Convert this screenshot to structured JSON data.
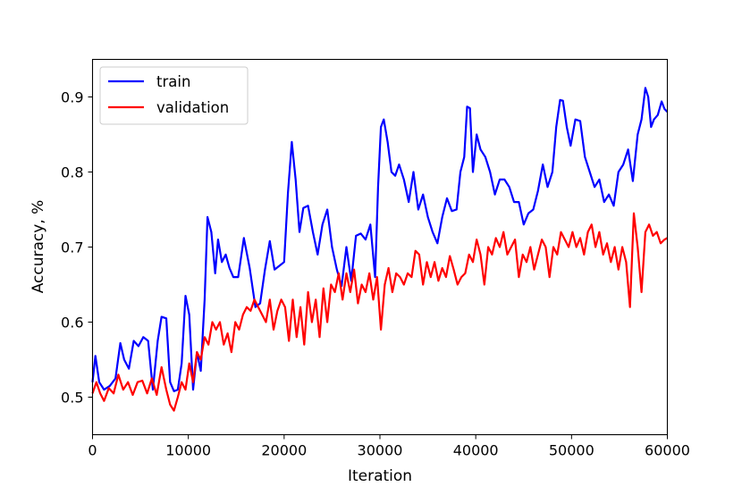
{
  "chart_data": {
    "type": "line",
    "xlabel": "Iteration",
    "ylabel": "Accuracy, %",
    "xlim": [
      0,
      60000
    ],
    "ylim": [
      0.45,
      0.95
    ],
    "xticks": [
      "0",
      "10000",
      "20000",
      "30000",
      "40000",
      "50000",
      "60000"
    ],
    "yticks": [
      "0.5",
      "0.6",
      "0.7",
      "0.8",
      "0.9"
    ],
    "grid": false,
    "legend_position": "top-left",
    "series": [
      {
        "name": "train",
        "color": "#0000ff",
        "x": [
          0,
          300,
          700,
          1200,
          1800,
          2400,
          2900,
          3300,
          3800,
          4300,
          4800,
          5300,
          5800,
          6300,
          6800,
          7200,
          7700,
          8100,
          8500,
          8900,
          9300,
          9700,
          10100,
          10500,
          10900,
          11300,
          11700,
          12000,
          12400,
          12800,
          13100,
          13500,
          13900,
          14300,
          14700,
          15200,
          15800,
          16400,
          17000,
          17500,
          18000,
          18500,
          19000,
          19500,
          20000,
          20400,
          20800,
          21200,
          21600,
          22000,
          22500,
          23000,
          23500,
          24000,
          24500,
          25000,
          25500,
          26000,
          26500,
          27000,
          27500,
          28000,
          28500,
          29000,
          29500,
          29800,
          30100,
          30400,
          30800,
          31200,
          31600,
          32000,
          32500,
          33000,
          33500,
          34000,
          34500,
          35000,
          35500,
          36000,
          36500,
          37000,
          37500,
          38000,
          38400,
          38800,
          39100,
          39400,
          39700,
          40100,
          40500,
          41000,
          41500,
          42000,
          42500,
          43000,
          43500,
          44000,
          44500,
          45000,
          45500,
          46000,
          46500,
          47000,
          47500,
          48000,
          48400,
          48800,
          49100,
          49500,
          49900,
          50400,
          50900,
          51400,
          51900,
          52400,
          52900,
          53400,
          53900,
          54400,
          54900,
          55400,
          55900,
          56400,
          56900,
          57300,
          57700,
          58000,
          58300,
          58600,
          59000,
          59400,
          59700,
          60000
        ],
        "y": [
          0.52,
          0.555,
          0.52,
          0.51,
          0.515,
          0.525,
          0.572,
          0.55,
          0.538,
          0.575,
          0.568,
          0.58,
          0.575,
          0.51,
          0.575,
          0.607,
          0.605,
          0.52,
          0.508,
          0.51,
          0.545,
          0.635,
          0.61,
          0.51,
          0.56,
          0.535,
          0.63,
          0.74,
          0.72,
          0.665,
          0.71,
          0.68,
          0.69,
          0.672,
          0.66,
          0.66,
          0.712,
          0.672,
          0.62,
          0.625,
          0.67,
          0.708,
          0.67,
          0.675,
          0.68,
          0.772,
          0.84,
          0.79,
          0.72,
          0.752,
          0.755,
          0.72,
          0.69,
          0.73,
          0.75,
          0.7,
          0.67,
          0.648,
          0.7,
          0.655,
          0.715,
          0.718,
          0.71,
          0.73,
          0.66,
          0.78,
          0.86,
          0.87,
          0.84,
          0.8,
          0.795,
          0.81,
          0.79,
          0.76,
          0.8,
          0.75,
          0.77,
          0.74,
          0.72,
          0.705,
          0.74,
          0.765,
          0.748,
          0.75,
          0.8,
          0.82,
          0.887,
          0.885,
          0.8,
          0.85,
          0.83,
          0.82,
          0.8,
          0.77,
          0.79,
          0.79,
          0.78,
          0.76,
          0.76,
          0.73,
          0.745,
          0.75,
          0.775,
          0.81,
          0.78,
          0.8,
          0.86,
          0.896,
          0.895,
          0.86,
          0.835,
          0.87,
          0.868,
          0.82,
          0.8,
          0.78,
          0.79,
          0.76,
          0.77,
          0.755,
          0.8,
          0.81,
          0.83,
          0.788,
          0.85,
          0.87,
          0.912,
          0.9,
          0.86,
          0.87,
          0.876,
          0.894,
          0.884,
          0.88
        ]
      },
      {
        "name": "validation",
        "color": "#ff0000",
        "x": [
          0,
          400,
          800,
          1200,
          1700,
          2200,
          2700,
          3200,
          3700,
          4200,
          4700,
          5200,
          5700,
          6200,
          6700,
          7200,
          7700,
          8100,
          8500,
          8900,
          9300,
          9700,
          10100,
          10500,
          10900,
          11300,
          11700,
          12100,
          12500,
          12900,
          13300,
          13700,
          14100,
          14500,
          14900,
          15300,
          15700,
          16100,
          16500,
          16900,
          17300,
          17700,
          18100,
          18500,
          18900,
          19300,
          19700,
          20100,
          20500,
          20900,
          21300,
          21700,
          22100,
          22500,
          22900,
          23300,
          23700,
          24100,
          24500,
          24900,
          25300,
          25700,
          26100,
          26500,
          26900,
          27300,
          27700,
          28100,
          28500,
          28900,
          29300,
          29700,
          30100,
          30500,
          30900,
          31300,
          31700,
          32100,
          32500,
          32900,
          33300,
          33700,
          34100,
          34500,
          34900,
          35300,
          35700,
          36100,
          36500,
          36900,
          37300,
          37700,
          38100,
          38500,
          38900,
          39300,
          39700,
          40100,
          40500,
          40900,
          41300,
          41700,
          42100,
          42500,
          42900,
          43300,
          43700,
          44100,
          44500,
          44900,
          45300,
          45700,
          46100,
          46500,
          46900,
          47300,
          47700,
          48100,
          48500,
          48900,
          49300,
          49700,
          50100,
          50500,
          50900,
          51300,
          51700,
          52100,
          52500,
          52900,
          53300,
          53700,
          54100,
          54500,
          54900,
          55300,
          55700,
          56100,
          56500,
          56900,
          57300,
          57700,
          58100,
          58500,
          58900,
          59300,
          59700,
          60000
        ],
        "y": [
          0.505,
          0.52,
          0.505,
          0.495,
          0.512,
          0.505,
          0.53,
          0.51,
          0.52,
          0.503,
          0.52,
          0.522,
          0.505,
          0.525,
          0.503,
          0.54,
          0.51,
          0.49,
          0.482,
          0.5,
          0.52,
          0.51,
          0.545,
          0.52,
          0.56,
          0.55,
          0.58,
          0.57,
          0.6,
          0.59,
          0.6,
          0.57,
          0.585,
          0.56,
          0.6,
          0.59,
          0.61,
          0.62,
          0.615,
          0.63,
          0.62,
          0.61,
          0.6,
          0.63,
          0.59,
          0.615,
          0.63,
          0.62,
          0.575,
          0.63,
          0.58,
          0.62,
          0.57,
          0.64,
          0.6,
          0.63,
          0.58,
          0.645,
          0.6,
          0.65,
          0.64,
          0.665,
          0.63,
          0.665,
          0.64,
          0.67,
          0.625,
          0.65,
          0.64,
          0.665,
          0.63,
          0.66,
          0.59,
          0.65,
          0.672,
          0.64,
          0.665,
          0.66,
          0.65,
          0.665,
          0.66,
          0.695,
          0.69,
          0.65,
          0.68,
          0.66,
          0.68,
          0.655,
          0.672,
          0.66,
          0.688,
          0.67,
          0.65,
          0.66,
          0.665,
          0.69,
          0.68,
          0.71,
          0.69,
          0.65,
          0.7,
          0.69,
          0.712,
          0.7,
          0.72,
          0.69,
          0.7,
          0.71,
          0.66,
          0.69,
          0.68,
          0.7,
          0.67,
          0.69,
          0.71,
          0.7,
          0.66,
          0.7,
          0.69,
          0.72,
          0.71,
          0.7,
          0.72,
          0.7,
          0.712,
          0.69,
          0.72,
          0.73,
          0.7,
          0.72,
          0.69,
          0.705,
          0.68,
          0.7,
          0.67,
          0.7,
          0.68,
          0.62,
          0.745,
          0.7,
          0.64,
          0.72,
          0.73,
          0.715,
          0.72,
          0.705,
          0.71,
          0.712
        ]
      }
    ]
  }
}
